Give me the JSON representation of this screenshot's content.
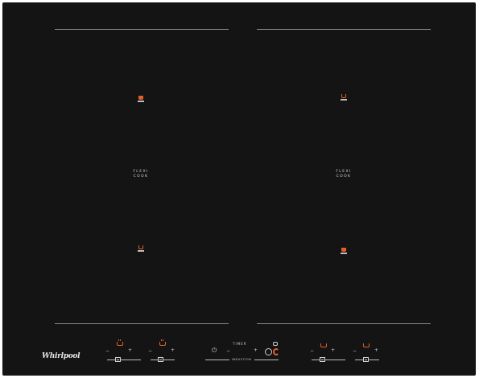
{
  "left_zone": {
    "label_line1": "FLEXI",
    "label_line2": "COOK"
  },
  "right_zone": {
    "label_line1": "FLEXI",
    "label_line2": "COOK"
  },
  "controls": {
    "minus_symbol": "−",
    "plus_symbol": "+",
    "timer_label": "TIMER",
    "induction_label": "INDUCTION",
    "power_symbol": "⏻"
  },
  "brand": {
    "logo_text": "Whirlpool"
  },
  "colors": {
    "glass": "#141414",
    "accent": "#e0602a",
    "line": "#8a8a8a",
    "text": "#cfcfcf"
  },
  "icons": [
    "pot-icon",
    "power-icon",
    "circle-icon",
    "lock-icon",
    "timer-icon",
    "slider-knob-icon"
  ]
}
